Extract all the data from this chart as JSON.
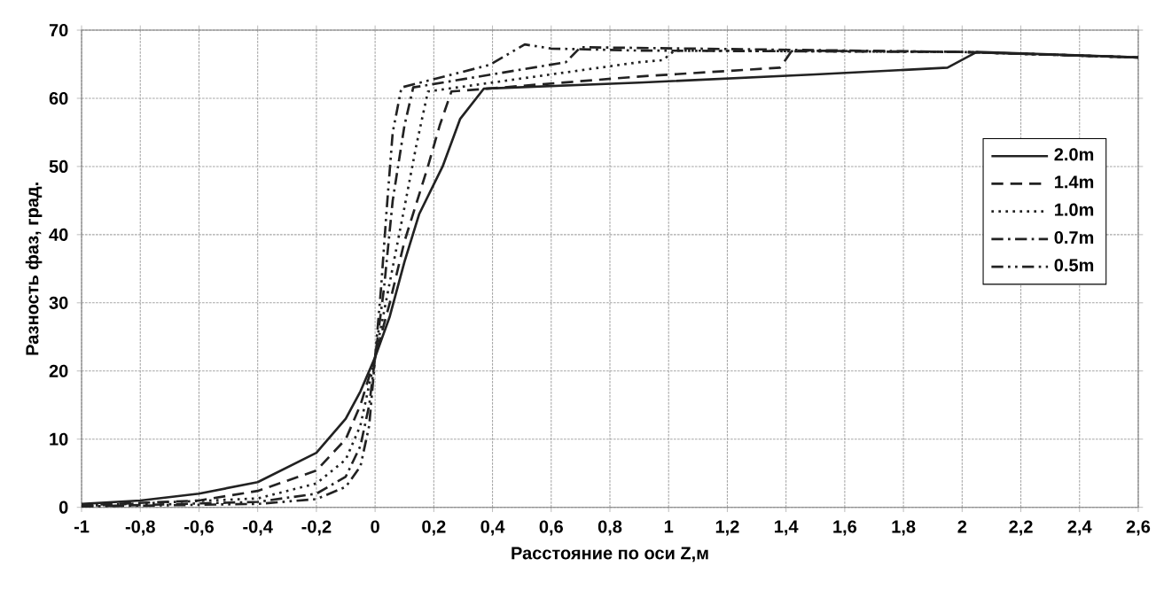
{
  "chart_data": {
    "type": "line",
    "xlabel": "Расстояние по оси Z,м",
    "ylabel": "Разность фаз, град.",
    "xlim": [
      -1,
      2.6
    ],
    "ylim": [
      0,
      70
    ],
    "xticks": [
      -1,
      {
        "value": -0.8,
        "label": "-0,8"
      },
      {
        "value": -0.6,
        "label": "-0,6"
      },
      {
        "value": -0.4,
        "label": "-0,4"
      },
      {
        "value": -0.2,
        "label": "-0,2"
      },
      0,
      {
        "value": 0.2,
        "label": "0,2"
      },
      {
        "value": 0.4,
        "label": "0,4"
      },
      {
        "value": 0.6,
        "label": "0,6"
      },
      {
        "value": 0.8,
        "label": "0,8"
      },
      1,
      {
        "value": 1.2,
        "label": "1,2"
      },
      {
        "value": 1.4,
        "label": "1,4"
      },
      {
        "value": 1.6,
        "label": "1,6"
      },
      {
        "value": 1.8,
        "label": "1,8"
      },
      2,
      {
        "value": 2.2,
        "label": "2,2"
      },
      {
        "value": 2.4,
        "label": "2,4"
      },
      {
        "value": 2.6,
        "label": "2,6"
      }
    ],
    "yticks": [
      0,
      10,
      20,
      30,
      40,
      50,
      60,
      70
    ],
    "grid": true,
    "legend": "right",
    "marker": "none",
    "series": [
      {
        "name": "2.0m",
        "color": "#222222",
        "line_style": "solid",
        "x": [
          -1,
          -0.8,
          -0.6,
          -0.4,
          -0.2,
          -0.1,
          -0.05,
          0,
          0.05,
          0.1,
          0.15,
          0.23,
          0.29,
          0.37,
          0.9,
          1.5,
          1.95,
          2.05,
          2.6
        ],
        "values": [
          0.5,
          1,
          2,
          3.7,
          8,
          13,
          17,
          22,
          28,
          36,
          43,
          50,
          57,
          61.4,
          62.3,
          63.5,
          64.5,
          66.8,
          66
        ]
      },
      {
        "name": "1.4m",
        "color": "#222222",
        "line_style": "dashed",
        "x": [
          -1,
          -0.6,
          -0.4,
          -0.2,
          -0.1,
          -0.05,
          0,
          0.05,
          0.1,
          0.18,
          0.22,
          0.26,
          0.9,
          1.38,
          1.42,
          2,
          2.6
        ],
        "values": [
          0.3,
          1,
          2.4,
          5.4,
          10,
          15,
          22,
          30,
          39,
          50,
          56,
          61,
          63.2,
          64.5,
          67,
          66.8,
          66
        ]
      },
      {
        "name": "1.0m",
        "color": "#222222",
        "line_style": "dotted",
        "x": [
          -1,
          -0.4,
          -0.2,
          -0.1,
          -0.05,
          0,
          0.05,
          0.1,
          0.14,
          0.18,
          0.9,
          0.98,
          1.02,
          2,
          2.6
        ],
        "values": [
          0.2,
          1.3,
          3.5,
          7,
          12,
          22,
          33,
          44,
          53,
          61,
          65.3,
          65.6,
          67,
          66.8,
          66
        ]
      },
      {
        "name": "0.7m",
        "color": "#222222",
        "line_style": "dashdot",
        "x": [
          -1,
          -0.4,
          -0.2,
          -0.1,
          -0.05,
          -0.02,
          0,
          0.03,
          0.06,
          0.1,
          0.13,
          0.65,
          0.7,
          2,
          2.6
        ],
        "values": [
          0.1,
          0.8,
          2,
          4.5,
          9,
          15,
          22,
          32,
          45,
          56,
          61.6,
          65.3,
          67.5,
          66.8,
          66
        ]
      },
      {
        "name": "0.5m",
        "color": "#222222",
        "line_style": "dashdotdot",
        "x": [
          -1,
          -0.4,
          -0.2,
          -0.1,
          -0.05,
          -0.02,
          0,
          0.02,
          0.04,
          0.06,
          0.09,
          0.39,
          0.51,
          0.6,
          0.9,
          2,
          2.6
        ],
        "values": [
          0.1,
          0.5,
          1.2,
          3,
          6,
          12,
          22,
          32,
          44,
          55,
          61.6,
          64.9,
          67.9,
          67.3,
          67,
          66.8,
          66
        ]
      }
    ]
  }
}
